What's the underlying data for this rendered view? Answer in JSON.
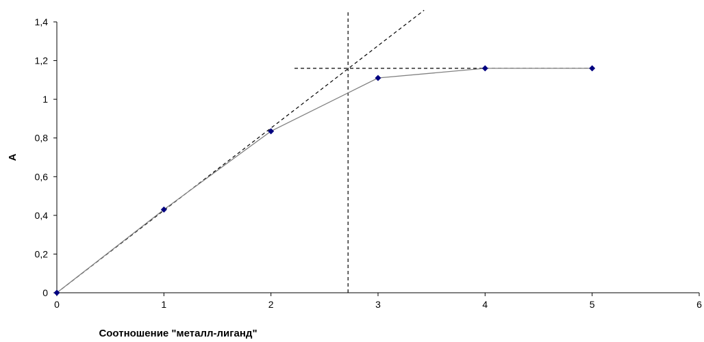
{
  "chart_data": {
    "type": "line",
    "xlabel": "Соотношение \"металл-лиганд\"",
    "ylabel": "A",
    "xlim": [
      0,
      6
    ],
    "ylim": [
      0,
      1.4
    ],
    "x_ticks": [
      0,
      1,
      2,
      3,
      4,
      5,
      6
    ],
    "y_ticks": [
      0,
      0.2,
      0.4,
      0.6,
      0.8,
      1,
      1.2,
      1.4
    ],
    "x_tick_labels": [
      "0",
      "1",
      "2",
      "3",
      "4",
      "5",
      "6"
    ],
    "y_tick_labels": [
      "0",
      "0,2",
      "0,4",
      "0,6",
      "0,8",
      "1",
      "1,2",
      "1,4"
    ],
    "grid": false,
    "legend": "none",
    "series": [
      {
        "x": [
          0,
          1,
          2,
          3,
          4,
          5
        ],
        "y": [
          0,
          0.43,
          0.835,
          1.11,
          1.16,
          1.16
        ],
        "line_color": "#808080",
        "marker_color": "#000080",
        "marker": "diamond"
      }
    ],
    "guide_lines": [
      {
        "style": "dashed",
        "color": "#000000",
        "points": [
          [
            0,
            0
          ],
          [
            3.43,
            1.46
          ]
        ]
      },
      {
        "style": "dashed",
        "color": "#000000",
        "points": [
          [
            2.22,
            1.16
          ],
          [
            5,
            1.16
          ]
        ]
      },
      {
        "style": "dashed",
        "color": "#000000",
        "points": [
          [
            2.72,
            0
          ],
          [
            2.72,
            1.46
          ]
        ]
      }
    ]
  }
}
